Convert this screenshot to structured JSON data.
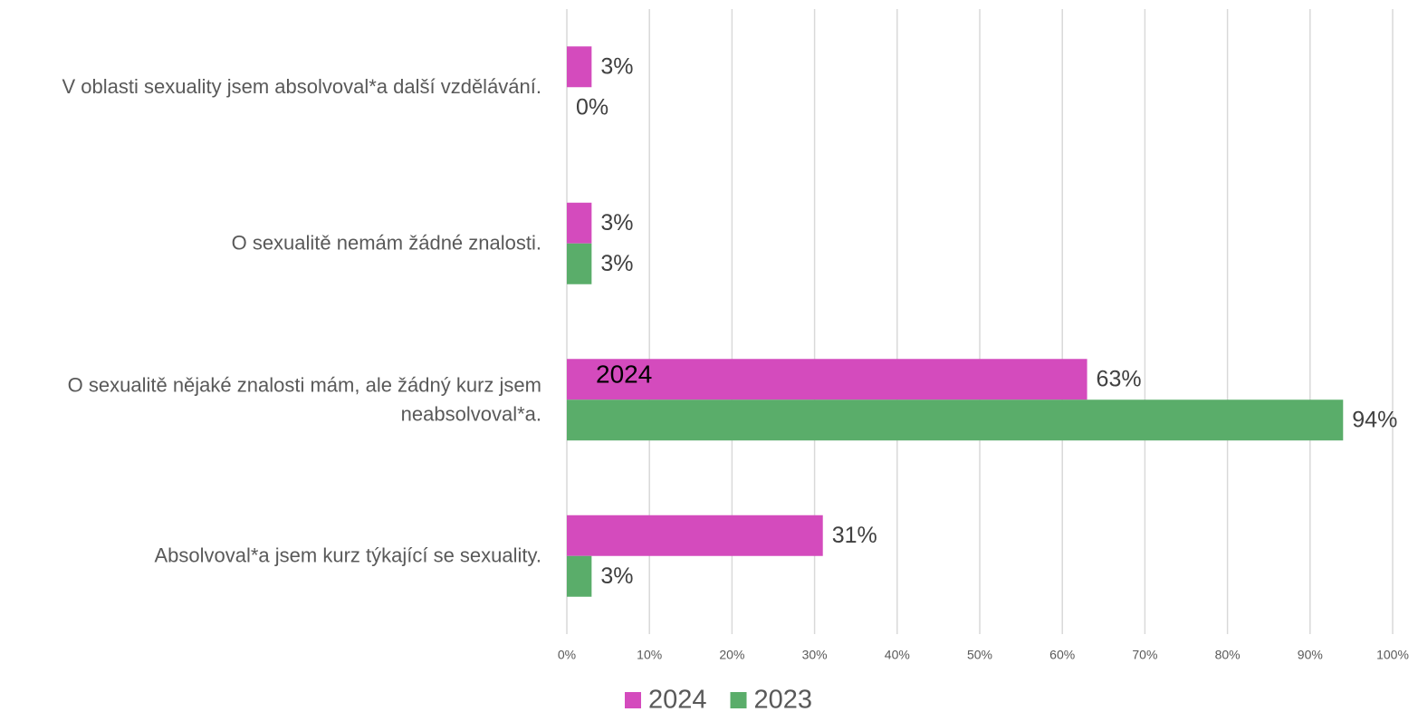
{
  "chart_data": {
    "type": "bar",
    "orientation": "horizontal",
    "categories": [
      "V oblasti sexuality jsem absolvoval*a další vzdělávání.",
      "O sexualitě nemám žádné znalosti.",
      "O sexualitě nějaké znalosti mám, ale žádný kurz jsem neabsolvoval*a.",
      "Absolvoval*a jsem kurz týkající se sexuality."
    ],
    "series": [
      {
        "name": "2024",
        "color": "#d44bbd",
        "values": [
          3,
          3,
          63,
          31
        ],
        "value_labels": [
          "3%",
          "3%",
          "63%",
          "31%"
        ]
      },
      {
        "name": "2023",
        "color": "#5aad6a",
        "values": [
          0,
          3,
          94,
          3
        ],
        "value_labels": [
          "0%",
          "3%",
          "94%",
          "3%"
        ]
      }
    ],
    "xlim": [
      0,
      100
    ],
    "xticks": [
      {
        "value": 0,
        "label": "0%"
      },
      {
        "value": 10,
        "label": "10%"
      },
      {
        "value": 20,
        "label": "20%"
      },
      {
        "value": 30,
        "label": "30%"
      },
      {
        "value": 40,
        "label": "40%"
      },
      {
        "value": 50,
        "label": "50%"
      },
      {
        "value": 60,
        "label": "60%"
      },
      {
        "value": 70,
        "label": "70%"
      },
      {
        "value": 80,
        "label": "80%"
      },
      {
        "value": 90,
        "label": "90%"
      },
      {
        "value": 100,
        "label": "100%"
      }
    ],
    "grid": true,
    "legend": "bottom",
    "annotations": [
      {
        "text": "2024",
        "category": 2,
        "series": 0
      }
    ]
  }
}
